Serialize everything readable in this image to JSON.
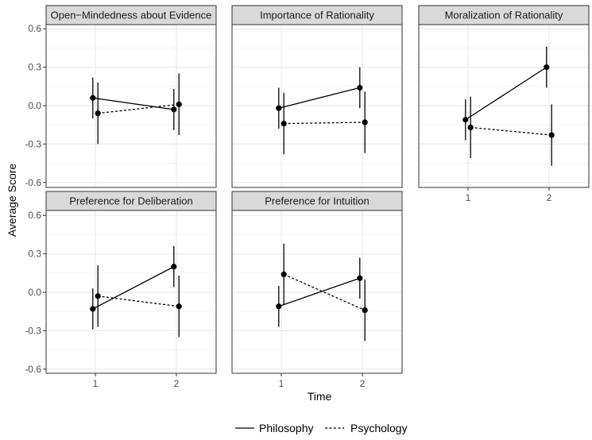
{
  "chart_data": {
    "type": "line",
    "xlabel": "Time",
    "ylabel": "Average Score",
    "x_ticks": [
      1,
      2
    ],
    "y_ticks": [
      0.6,
      0.3,
      0.0,
      -0.3,
      -0.6
    ],
    "y_tick_labels": [
      "0.6",
      "0.3",
      "0.0",
      "-0.3",
      "-0.6"
    ],
    "ylim": [
      -0.66,
      0.66
    ],
    "grid": true,
    "legend": {
      "position": "bottom",
      "entries": [
        {
          "name": "Philosophy",
          "linetype": "solid"
        },
        {
          "name": "Psychology",
          "linetype": "dashed"
        }
      ]
    },
    "colors": {
      "strip_fill": "#d9d9d9",
      "grid": "#ebebeb",
      "border": "#333333",
      "data": "#000000"
    },
    "facets": [
      {
        "title": "Open−Mindedness about Evidence",
        "series": [
          {
            "name": "Philosophy",
            "x": [
              1,
              2
            ],
            "y": [
              0.06,
              -0.03
            ],
            "ymin": [
              -0.1,
              -0.19
            ],
            "ymax": [
              0.22,
              0.13
            ]
          },
          {
            "name": "Psychology",
            "x": [
              1,
              2
            ],
            "y": [
              -0.06,
              0.01
            ],
            "ymin": [
              -0.3,
              -0.23
            ],
            "ymax": [
              0.18,
              0.25
            ]
          }
        ]
      },
      {
        "title": "Importance of Rationality",
        "series": [
          {
            "name": "Philosophy",
            "x": [
              1,
              2
            ],
            "y": [
              -0.02,
              0.14
            ],
            "ymin": [
              -0.18,
              -0.02
            ],
            "ymax": [
              0.14,
              0.3
            ]
          },
          {
            "name": "Psychology",
            "x": [
              1,
              2
            ],
            "y": [
              -0.14,
              -0.13
            ],
            "ymin": [
              -0.38,
              -0.37
            ],
            "ymax": [
              0.1,
              0.11
            ]
          }
        ]
      },
      {
        "title": "Moralization of Rationality",
        "series": [
          {
            "name": "Philosophy",
            "x": [
              1,
              2
            ],
            "y": [
              -0.11,
              0.3
            ],
            "ymin": [
              -0.27,
              0.14
            ],
            "ymax": [
              0.05,
              0.46
            ]
          },
          {
            "name": "Psychology",
            "x": [
              1,
              2
            ],
            "y": [
              -0.17,
              -0.23
            ],
            "ymin": [
              -0.41,
              -0.47
            ],
            "ymax": [
              0.07,
              0.01
            ]
          }
        ]
      },
      {
        "title": "Preference for Deliberation",
        "series": [
          {
            "name": "Philosophy",
            "x": [
              1,
              2
            ],
            "y": [
              -0.13,
              0.2
            ],
            "ymin": [
              -0.29,
              0.04
            ],
            "ymax": [
              0.03,
              0.36
            ]
          },
          {
            "name": "Psychology",
            "x": [
              1,
              2
            ],
            "y": [
              -0.03,
              -0.11
            ],
            "ymin": [
              -0.27,
              -0.35
            ],
            "ymax": [
              0.21,
              0.13
            ]
          }
        ]
      },
      {
        "title": "Preference for Intuition",
        "series": [
          {
            "name": "Philosophy",
            "x": [
              1,
              2
            ],
            "y": [
              -0.11,
              0.11
            ],
            "ymin": [
              -0.27,
              -0.05
            ],
            "ymax": [
              0.05,
              0.27
            ]
          },
          {
            "name": "Psychology",
            "x": [
              1,
              2
            ],
            "y": [
              0.14,
              -0.14
            ],
            "ymin": [
              -0.1,
              -0.38
            ],
            "ymax": [
              0.38,
              0.1
            ]
          }
        ]
      }
    ]
  }
}
